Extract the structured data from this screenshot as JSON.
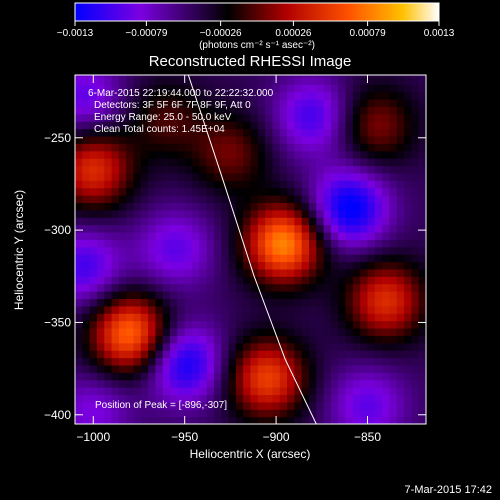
{
  "chart_data": {
    "type": "heatmap",
    "title": "Reconstructed RHESSI Image",
    "xlabel": "Heliocentric X (arcsec)",
    "ylabel": "Heliocentric Y (arcsec)",
    "xlim": [
      -1010,
      -818
    ],
    "ylim": [
      -405,
      -216
    ],
    "x_ticks": [
      -1000,
      -950,
      -900,
      -850
    ],
    "x_tick_labels": [
      "−1000",
      "−950",
      "−900",
      "−850"
    ],
    "y_ticks": [
      -250,
      -300,
      -350,
      -400
    ],
    "y_tick_labels": [
      "−250",
      "−300",
      "−350",
      "−400"
    ],
    "colorbar": {
      "min": -0.0013,
      "max": 0.0013,
      "ticks": [
        -0.0013,
        -0.00079,
        -0.00026,
        0.00026,
        0.00079,
        0.0013
      ],
      "tick_labels": [
        "−0.0013",
        "−0.00079",
        "−0.00026",
        "0.00026",
        "0.00079",
        "0.0013"
      ],
      "unit_label": "(photons cm⁻² s⁻¹ asec⁻²)",
      "colors": [
        "#0000ff",
        "#7b00e0",
        "#000000",
        "#b00000",
        "#ff5000",
        "#ffc000",
        "#ffffff"
      ]
    },
    "sources": [
      {
        "x": -896,
        "y": -307,
        "peak": 0.0013
      },
      {
        "x": -980,
        "y": -356,
        "peak": 0.0012
      },
      {
        "x": -1000,
        "y": -267,
        "peak": 0.0009
      },
      {
        "x": -905,
        "y": -380,
        "peak": 0.001
      },
      {
        "x": -840,
        "y": -338,
        "peak": 0.0009
      },
      {
        "x": -925,
        "y": -258,
        "peak": 0.0005
      },
      {
        "x": -960,
        "y": -240,
        "peak": 0.0004
      },
      {
        "x": -845,
        "y": -243,
        "peak": 0.00055
      },
      {
        "x": -955,
        "y": -310,
        "peak": -0.0005
      },
      {
        "x": -860,
        "y": -288,
        "peak": -0.0009
      },
      {
        "x": -950,
        "y": -372,
        "peak": -0.0008
      },
      {
        "x": -1005,
        "y": -320,
        "peak": -0.0006
      },
      {
        "x": -880,
        "y": -238,
        "peak": -0.0006
      },
      {
        "x": -1005,
        "y": -228,
        "peak": -0.0005
      },
      {
        "x": -850,
        "y": -395,
        "peak": -0.0005
      },
      {
        "x": -1000,
        "y": -398,
        "peak": -0.0004
      }
    ],
    "limb_curve": [
      [
        -948,
        -216
      ],
      [
        -930,
        -270
      ],
      [
        -912,
        -325
      ],
      [
        -895,
        -370
      ],
      [
        -878,
        -405
      ]
    ],
    "annotations": [
      "6-Mar-2015 22:19:44.000 to 22:22:32.000",
      "Detectors: 3F 5F 6F 7F 8F 9F, Att 0",
      "Energy Range: 25.0 - 50.0 keV",
      "Clean    Total counts: 1.45E+04"
    ],
    "peak_label": "Position of Peak = [-896,-307]"
  },
  "footer_timestamp": "7-Mar-2015 17:42"
}
